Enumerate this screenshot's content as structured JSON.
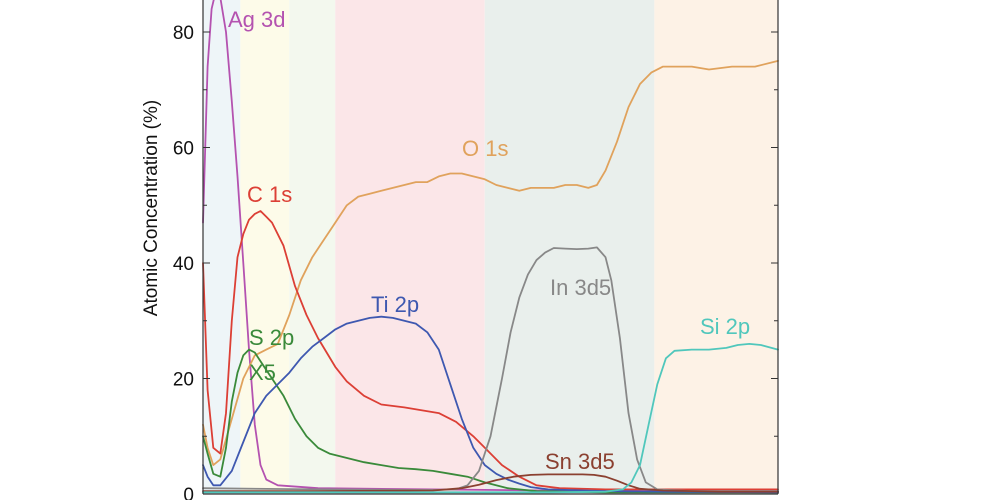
{
  "chart_data": {
    "type": "line",
    "title": "",
    "xlabel": "",
    "ylabel": "Atomic Concentration (%)",
    "xlim": [
      0,
      100
    ],
    "ylim": [
      0,
      86
    ],
    "yticks": [
      0,
      20,
      40,
      60,
      80
    ],
    "grid": false,
    "bands": [
      {
        "from": 0,
        "to": 6.5,
        "color": "#eef5f8"
      },
      {
        "from": 6.5,
        "to": 15,
        "color": "#fdfbe9"
      },
      {
        "from": 15,
        "to": 23,
        "color": "#f3f8ee"
      },
      {
        "from": 23,
        "to": 49,
        "color": "#fbe6e8"
      },
      {
        "from": 49,
        "to": 78.5,
        "color": "#e9efec"
      },
      {
        "from": 78.5,
        "to": 100,
        "color": "#fdf2e6"
      }
    ],
    "series": [
      {
        "name": "Ag 3d",
        "color": "#b452b0",
        "points": [
          [
            0,
            47
          ],
          [
            0.8,
            74
          ],
          [
            1.5,
            84
          ],
          [
            2.2,
            87
          ],
          [
            3,
            86
          ],
          [
            4,
            80
          ],
          [
            5,
            68
          ],
          [
            6,
            55
          ],
          [
            7,
            40
          ],
          [
            8,
            25
          ],
          [
            9,
            12
          ],
          [
            10,
            5
          ],
          [
            11,
            2.5
          ],
          [
            13,
            1.5
          ],
          [
            20,
            1
          ],
          [
            40,
            0.8
          ],
          [
            60,
            0.6
          ],
          [
            80,
            0.5
          ],
          [
            100,
            0.5
          ]
        ]
      },
      {
        "name": "O 1s",
        "color": "#e0a25c",
        "points": [
          [
            0,
            12
          ],
          [
            0.8,
            8
          ],
          [
            1.8,
            5
          ],
          [
            3,
            6
          ],
          [
            5,
            13
          ],
          [
            7,
            20
          ],
          [
            9,
            24
          ],
          [
            11,
            25
          ],
          [
            13,
            26
          ],
          [
            15,
            31
          ],
          [
            17,
            37
          ],
          [
            19,
            41
          ],
          [
            21,
            44
          ],
          [
            23,
            47
          ],
          [
            25,
            50
          ],
          [
            27,
            51.5
          ],
          [
            29,
            52
          ],
          [
            31,
            52.5
          ],
          [
            33,
            53
          ],
          [
            35,
            53.5
          ],
          [
            37,
            54
          ],
          [
            39,
            54
          ],
          [
            41,
            55
          ],
          [
            43,
            55.5
          ],
          [
            45,
            55.5
          ],
          [
            47,
            55
          ],
          [
            49,
            54.5
          ],
          [
            51,
            53.5
          ],
          [
            53,
            53
          ],
          [
            55,
            52.5
          ],
          [
            57,
            53
          ],
          [
            59,
            53
          ],
          [
            61,
            53
          ],
          [
            63,
            53.5
          ],
          [
            65,
            53.5
          ],
          [
            67,
            53
          ],
          [
            68.5,
            53.5
          ],
          [
            70,
            56
          ],
          [
            72,
            61
          ],
          [
            74,
            67
          ],
          [
            76,
            71
          ],
          [
            78,
            73
          ],
          [
            80,
            74
          ],
          [
            85,
            74
          ],
          [
            88,
            73.5
          ],
          [
            92,
            74
          ],
          [
            96,
            74
          ],
          [
            100,
            75
          ]
        ]
      },
      {
        "name": "C 1s",
        "color": "#dc3f35",
        "points": [
          [
            0,
            40
          ],
          [
            0.8,
            18
          ],
          [
            1.8,
            8
          ],
          [
            3,
            7
          ],
          [
            4,
            14
          ],
          [
            5,
            30
          ],
          [
            6,
            41
          ],
          [
            7,
            45
          ],
          [
            8,
            47.5
          ],
          [
            9,
            48.5
          ],
          [
            10,
            49
          ],
          [
            11,
            48
          ],
          [
            12,
            47
          ],
          [
            14,
            43
          ],
          [
            16,
            36
          ],
          [
            18,
            31
          ],
          [
            20,
            27
          ],
          [
            23,
            22
          ],
          [
            25,
            19.5
          ],
          [
            28,
            17
          ],
          [
            31,
            15.5
          ],
          [
            35,
            15
          ],
          [
            38,
            14.5
          ],
          [
            41,
            14
          ],
          [
            44,
            12.5
          ],
          [
            47,
            10
          ],
          [
            49,
            8
          ],
          [
            52,
            5
          ],
          [
            55,
            3
          ],
          [
            58,
            1.5
          ],
          [
            62,
            1
          ],
          [
            70,
            0.8
          ],
          [
            80,
            0.8
          ],
          [
            90,
            0.8
          ],
          [
            100,
            0.8
          ]
        ]
      },
      {
        "name": "S 2p\nX5",
        "color": "#3a8a3a",
        "points": [
          [
            0,
            10
          ],
          [
            0.8,
            7
          ],
          [
            1.8,
            3.5
          ],
          [
            3,
            3
          ],
          [
            4,
            8
          ],
          [
            5,
            16
          ],
          [
            6,
            21
          ],
          [
            7,
            24
          ],
          [
            8,
            25
          ],
          [
            9,
            24.5
          ],
          [
            10,
            23
          ],
          [
            12,
            20
          ],
          [
            14,
            17
          ],
          [
            16,
            13
          ],
          [
            18,
            10
          ],
          [
            20,
            8
          ],
          [
            22,
            7
          ],
          [
            24,
            6.5
          ],
          [
            26,
            6
          ],
          [
            28,
            5.5
          ],
          [
            31,
            5
          ],
          [
            34,
            4.5
          ],
          [
            37,
            4.3
          ],
          [
            40,
            4
          ],
          [
            43,
            3.5
          ],
          [
            46,
            3
          ],
          [
            49,
            2
          ],
          [
            53,
            1
          ],
          [
            58,
            0.5
          ],
          [
            70,
            0.3
          ],
          [
            100,
            0.3
          ]
        ]
      },
      {
        "name": "Ti 2p",
        "color": "#3e58b0",
        "points": [
          [
            0,
            5
          ],
          [
            0.8,
            3
          ],
          [
            1.8,
            1.5
          ],
          [
            3,
            1.5
          ],
          [
            5,
            4
          ],
          [
            7,
            9
          ],
          [
            9,
            14
          ],
          [
            11,
            17
          ],
          [
            13,
            19
          ],
          [
            15,
            21
          ],
          [
            17,
            23.5
          ],
          [
            19,
            25.5
          ],
          [
            21,
            27
          ],
          [
            23,
            28.5
          ],
          [
            25,
            29.5
          ],
          [
            27,
            30
          ],
          [
            29,
            30.5
          ],
          [
            31,
            30.7
          ],
          [
            33,
            30.5
          ],
          [
            35,
            30
          ],
          [
            37,
            29.5
          ],
          [
            39,
            28
          ],
          [
            41,
            25
          ],
          [
            43,
            19
          ],
          [
            45,
            13
          ],
          [
            47,
            8
          ],
          [
            49,
            5
          ],
          [
            51,
            3.5
          ],
          [
            53,
            2.5
          ],
          [
            55,
            1.8
          ],
          [
            57,
            1.2
          ],
          [
            60,
            0.8
          ],
          [
            70,
            0.5
          ],
          [
            80,
            0.4
          ],
          [
            100,
            0.3
          ]
        ]
      },
      {
        "name": "In 3d5",
        "color": "#888888",
        "points": [
          [
            0,
            1
          ],
          [
            20,
            0.8
          ],
          [
            40,
            0.7
          ],
          [
            44,
            0.8
          ],
          [
            46,
            1.5
          ],
          [
            48,
            4
          ],
          [
            50,
            10
          ],
          [
            52,
            20
          ],
          [
            53.5,
            28
          ],
          [
            55,
            34
          ],
          [
            56.5,
            38
          ],
          [
            58,
            40.5
          ],
          [
            59.5,
            41.8
          ],
          [
            61,
            42.6
          ],
          [
            63,
            42.5
          ],
          [
            65,
            42.4
          ],
          [
            67,
            42.5
          ],
          [
            68.5,
            42.7
          ],
          [
            70,
            41
          ],
          [
            71,
            37
          ],
          [
            72.5,
            27
          ],
          [
            74,
            14
          ],
          [
            75.5,
            6
          ],
          [
            77,
            2
          ],
          [
            79,
            0.8
          ],
          [
            85,
            0.5
          ],
          [
            100,
            0.5
          ]
        ]
      },
      {
        "name": "Sn 3d5",
        "color": "#8b4030",
        "points": [
          [
            0,
            0.5
          ],
          [
            20,
            0.5
          ],
          [
            40,
            0.6
          ],
          [
            45,
            1
          ],
          [
            48,
            1.6
          ],
          [
            51,
            2.4
          ],
          [
            54,
            3
          ],
          [
            57,
            3.3
          ],
          [
            60,
            3.4
          ],
          [
            63,
            3.4
          ],
          [
            66,
            3.4
          ],
          [
            68,
            3.3
          ],
          [
            70,
            3
          ],
          [
            72,
            2.3
          ],
          [
            74,
            1.5
          ],
          [
            76,
            0.9
          ],
          [
            80,
            0.6
          ],
          [
            90,
            0.4
          ],
          [
            100,
            0.4
          ]
        ]
      },
      {
        "name": "Si 2p",
        "color": "#50c7bc",
        "points": [
          [
            0,
            0.3
          ],
          [
            60,
            0.3
          ],
          [
            70,
            0.4
          ],
          [
            73,
            0.8
          ],
          [
            74.5,
            2
          ],
          [
            76,
            5
          ],
          [
            77.5,
            12
          ],
          [
            79,
            19
          ],
          [
            80.5,
            23.5
          ],
          [
            82,
            24.8
          ],
          [
            85,
            25
          ],
          [
            88,
            25
          ],
          [
            91,
            25.3
          ],
          [
            93,
            25.8
          ],
          [
            95,
            26
          ],
          [
            97,
            25.8
          ],
          [
            100,
            25
          ]
        ]
      }
    ]
  }
}
